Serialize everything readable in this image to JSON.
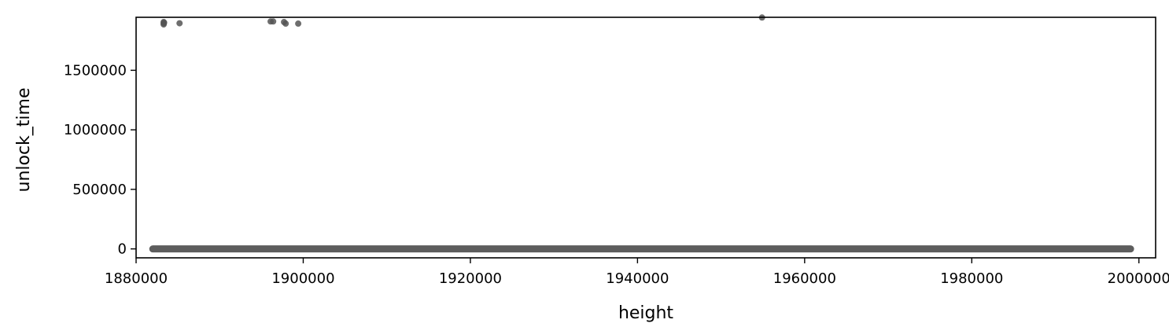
{
  "chart_data": {
    "type": "scatter",
    "title": "",
    "xlabel": "height",
    "ylabel": "unlock_time",
    "xlim": [
      1880000,
      2002000
    ],
    "ylim": [
      -75000,
      1945000
    ],
    "x_ticks": [
      1880000,
      1900000,
      1920000,
      1940000,
      1960000,
      1980000,
      2000000
    ],
    "x_tick_labels": [
      "1880000",
      "1900000",
      "1920000",
      "1940000",
      "1960000",
      "1980000",
      "2000000"
    ],
    "y_ticks": [
      0,
      500000,
      1000000,
      1500000
    ],
    "y_tick_labels": [
      "0",
      "500000",
      "1000000",
      "1500000"
    ],
    "grid": false,
    "legend": "none",
    "marker_color": "#555555",
    "series": [
      {
        "baseline_band": {
          "x_start": 1882000,
          "x_end": 1999000,
          "y": 0
        },
        "points": [
          {
            "x": 1883300,
            "y": 1905000
          },
          {
            "x": 1883300,
            "y": 1895000
          },
          {
            "x": 1883300,
            "y": 1885000
          },
          {
            "x": 1883350,
            "y": 1900000
          },
          {
            "x": 1885200,
            "y": 1895000
          },
          {
            "x": 1896100,
            "y": 1910000
          },
          {
            "x": 1896400,
            "y": 1910000
          },
          {
            "x": 1897700,
            "y": 1905000
          },
          {
            "x": 1897900,
            "y": 1892000
          },
          {
            "x": 1899400,
            "y": 1892000
          },
          {
            "x": 1954900,
            "y": 1943000
          }
        ]
      }
    ]
  }
}
